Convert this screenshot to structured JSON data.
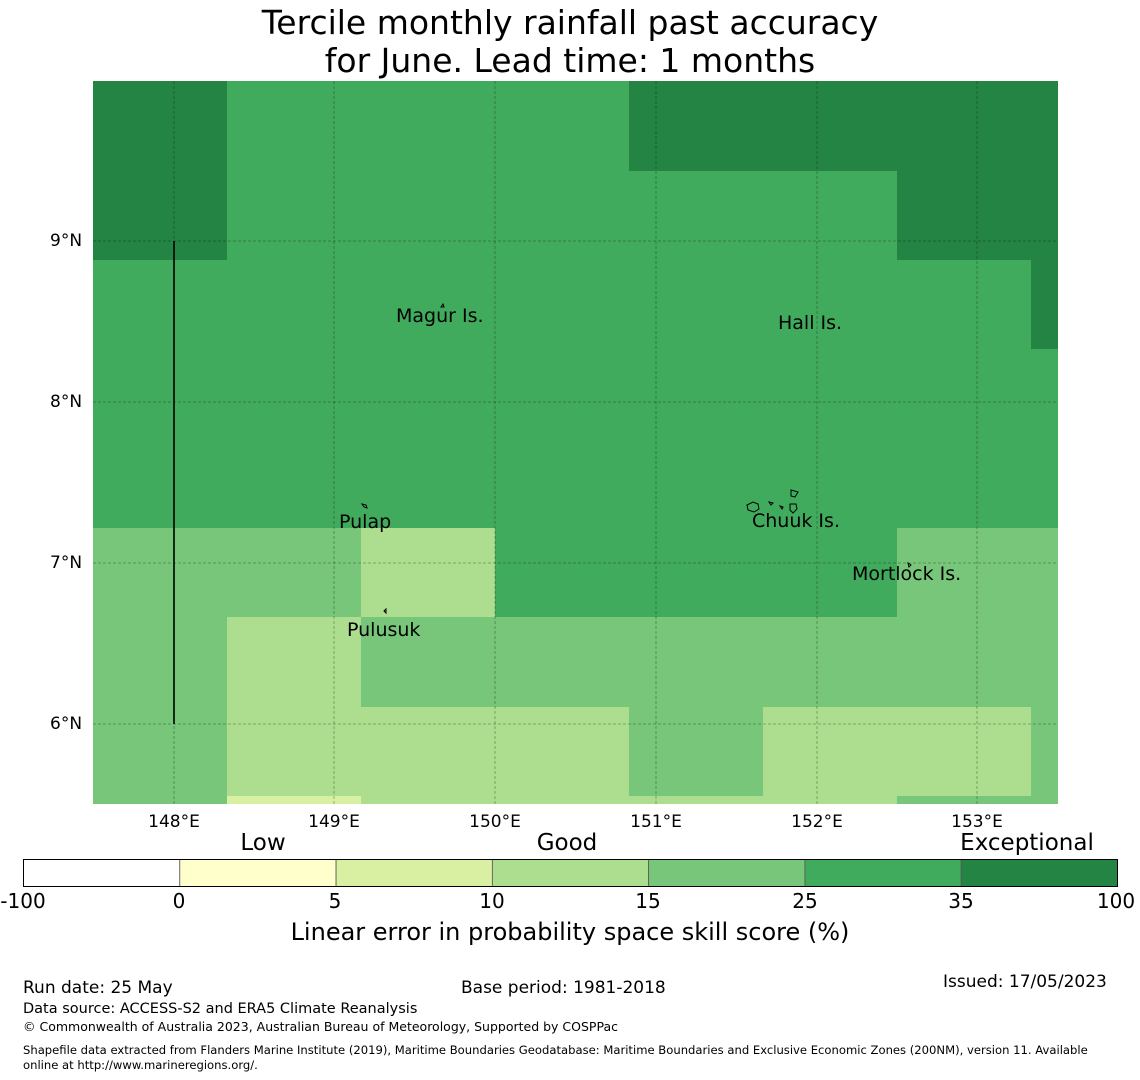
{
  "title": {
    "line1": "Tercile monthly rainfall past accuracy",
    "line2": "for June. Lead time: 1 months"
  },
  "axes": {
    "lat_labels": [
      "9°N",
      "8°N",
      "7°N",
      "6°N"
    ],
    "lon_labels": [
      "148°E",
      "149°E",
      "150°E",
      "151°E",
      "152°E",
      "153°E"
    ]
  },
  "places": [
    "Magur Is.",
    "Hall Is.",
    "Pulap",
    "Chuuk Is.",
    "Mortlock Is.",
    "Pulusuk"
  ],
  "colorbar": {
    "categories": [
      "Low",
      "Good",
      "Exceptional"
    ],
    "ticks": [
      "-100",
      "0",
      "5",
      "10",
      "15",
      "25",
      "35",
      "100"
    ],
    "colors": [
      "#ffffff",
      "#ffffcc",
      "#d9f0a3",
      "#addd8e",
      "#78c679",
      "#41ab5d",
      "#238443"
    ],
    "label": "Linear error in probability space skill score (%)"
  },
  "footer": {
    "run_date": "Run date: 25 May",
    "base_period": "Base period: 1981-2018",
    "issued": "Issued: 17/05/2023",
    "data_source": "Data source: ACCESS-S2 and ERA5 Climate Reanalysis",
    "copyright": "© Commonwealth of Australia 2023, Australian Bureau of Meteorology, Supported by COSPPac",
    "shapefile_line1": "Shapefile data extracted from Flanders Marine Institute (2019), Maritime Boundaries Geodatabase: Maritime Boundaries and Exclusive Economic Zones (200NM), version 11. Available",
    "shapefile_line2": "online at http://www.marineregions.org/."
  }
}
